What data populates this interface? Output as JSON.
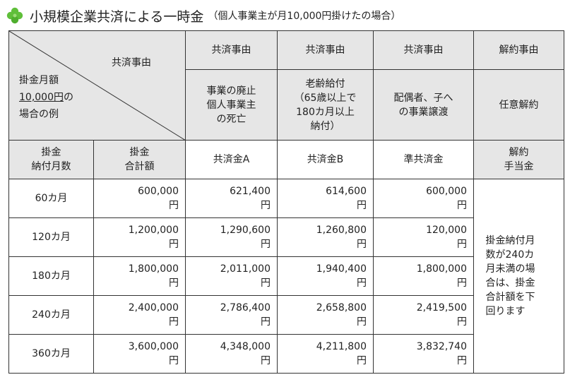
{
  "title": {
    "main": "小規模企業共済による一時金",
    "sub": "（個人事業主が月10,000円掛けたの場合）"
  },
  "corner": {
    "top_label": "共済事由",
    "line1": "掛金月額",
    "line2_underlined": "10,000円",
    "line2_rest": "の",
    "line3": "場合の例"
  },
  "header": {
    "cols": [
      "共済事由",
      "共済事由",
      "共済事由",
      "解約事由"
    ],
    "reasons": [
      [
        "事業の廃止",
        "個人事業主",
        "の死亡"
      ],
      [
        "老齢給付",
        "（65歳以上で",
        "180カ月以上",
        "納付）"
      ],
      [
        "配偶者、子へ",
        "の事業譲渡"
      ],
      [
        "任意解約"
      ]
    ],
    "row2": [
      [
        "掛金",
        "納付月数"
      ],
      [
        "掛金",
        "合計額"
      ],
      [
        "共済金A"
      ],
      [
        "共済金B"
      ],
      [
        "準共済金"
      ],
      [
        "解約",
        "手当金"
      ]
    ]
  },
  "rows": [
    {
      "months": "60カ月",
      "total": "600,000",
      "a": "621,400",
      "b": "614,600",
      "c": "600,000"
    },
    {
      "months": "120カ月",
      "total": "1,200,000",
      "a": "1,290,600",
      "b": "1,260,800",
      "c": "120,000"
    },
    {
      "months": "180カ月",
      "total": "1,800,000",
      "a": "2,011,000",
      "b": "1,940,400",
      "c": "1,800,000"
    },
    {
      "months": "240カ月",
      "total": "2,400,000",
      "a": "2,786,400",
      "b": "2,658,800",
      "c": "2,419,500"
    },
    {
      "months": "360カ月",
      "total": "3,600,000",
      "a": "4,348,000",
      "b": "4,211,800",
      "c": "3,832,740"
    }
  ],
  "unit": "円",
  "cancel_note": [
    "掛金納付月",
    "数が240カ",
    "月未満の場",
    "合は、掛金",
    "合計額を下",
    "回ります"
  ],
  "colors": {
    "header_bg": "#e6e6e6",
    "border": "#333333",
    "clover": "#5fbf3a"
  },
  "icon": "clover-icon"
}
